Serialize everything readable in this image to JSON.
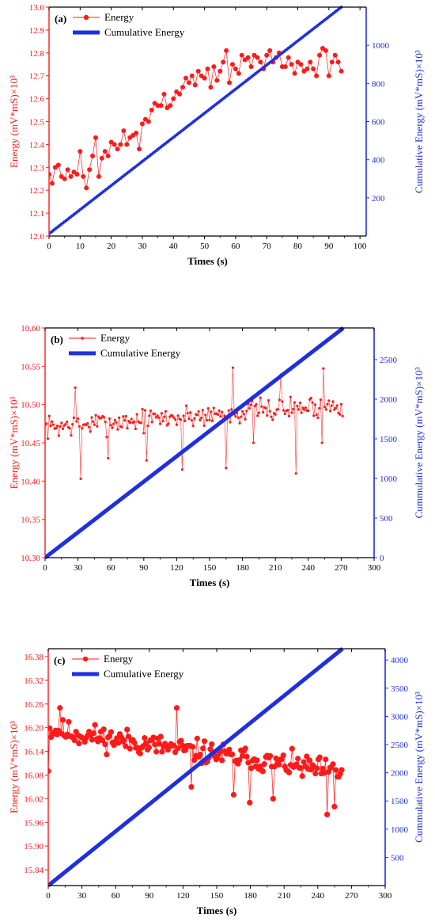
{
  "colors": {
    "energy": "#ff1a1a",
    "cumulative": "#1f2fe0",
    "axis": "#000000"
  },
  "chart_data": [
    {
      "type": "line",
      "panel_label": "(a)",
      "xlabel": "Times (s)",
      "ylabel": "Energy (mV*mS)×10³",
      "y2label": "Cumulative Energy (mV*mS)×10³",
      "xlim": [
        0,
        102
      ],
      "ylim": [
        12.0,
        13.0
      ],
      "y2lim": [
        0,
        1200
      ],
      "xticks": [
        0,
        10,
        20,
        30,
        40,
        50,
        60,
        70,
        80,
        90,
        100
      ],
      "yticks": [
        12.0,
        12.1,
        12.2,
        12.3,
        12.4,
        12.5,
        12.6,
        12.7,
        12.8,
        12.9,
        13.0
      ],
      "y2ticks": [
        200,
        400,
        600,
        800,
        1000
      ],
      "ytick_decimals": 1,
      "legend_position": "top-left",
      "series": [
        {
          "name": "Energy",
          "axis": "left",
          "style": "line-marker",
          "x": [
            0,
            1,
            2,
            3,
            4,
            5,
            6,
            7,
            8,
            9,
            10,
            11,
            12,
            13,
            14,
            15,
            16,
            17,
            18,
            19,
            20,
            21,
            22,
            23,
            24,
            25,
            26,
            27,
            28,
            29,
            30,
            31,
            32,
            33,
            34,
            35,
            36,
            37,
            38,
            39,
            40,
            41,
            42,
            43,
            44,
            45,
            46,
            47,
            48,
            49,
            50,
            51,
            52,
            53,
            54,
            55,
            56,
            57,
            58,
            59,
            60,
            61,
            62,
            63,
            64,
            65,
            66,
            67,
            68,
            69,
            70,
            71,
            72,
            73,
            74,
            75,
            76,
            77,
            78,
            79,
            80,
            81,
            82,
            83,
            84,
            85,
            86,
            87,
            88,
            89,
            90,
            91,
            92,
            93,
            94
          ],
          "values": [
            12.27,
            12.23,
            12.3,
            12.31,
            12.26,
            12.25,
            12.29,
            12.26,
            12.28,
            12.27,
            12.37,
            12.26,
            12.21,
            12.29,
            12.35,
            12.43,
            12.26,
            12.34,
            12.37,
            12.35,
            12.41,
            12.4,
            12.38,
            12.4,
            12.46,
            12.4,
            12.43,
            12.44,
            12.45,
            12.38,
            12.49,
            12.51,
            12.5,
            12.55,
            12.58,
            12.57,
            12.57,
            12.62,
            12.56,
            12.57,
            12.6,
            12.63,
            12.62,
            12.65,
            12.69,
            12.67,
            12.7,
            12.66,
            12.72,
            12.7,
            12.69,
            12.73,
            12.65,
            12.74,
            12.68,
            12.72,
            12.76,
            12.81,
            12.67,
            12.75,
            12.73,
            12.71,
            12.79,
            12.77,
            12.78,
            12.74,
            12.79,
            12.78,
            12.76,
            12.73,
            12.79,
            12.81,
            12.76,
            12.78,
            12.8,
            12.74,
            12.74,
            12.78,
            12.75,
            12.71,
            12.76,
            12.75,
            12.72,
            12.73,
            12.76,
            12.73,
            12.7,
            12.79,
            12.82,
            12.81,
            12.7,
            12.76,
            12.79,
            12.76,
            12.72
          ]
        },
        {
          "name": "Cumulative Energy",
          "axis": "right",
          "style": "dots",
          "x_start": 0,
          "x_end": 94,
          "x_step": 1,
          "y_start": 12,
          "y_end": 1200
        }
      ]
    },
    {
      "type": "line",
      "panel_label": "(b)",
      "xlabel": "Times (s)",
      "ylabel": "Energy (mV*mS)×10³",
      "y2label": "Cummulative Energy (mV*mS)×10³",
      "xlim": [
        0,
        300
      ],
      "ylim": [
        10.3,
        10.6
      ],
      "y2lim": [
        0,
        2900
      ],
      "xticks": [
        0,
        30,
        60,
        90,
        120,
        150,
        180,
        210,
        240,
        270,
        300
      ],
      "yticks": [
        10.3,
        10.35,
        10.4,
        10.45,
        10.5,
        10.55,
        10.6
      ],
      "y2ticks": [
        0,
        500,
        1000,
        1500,
        2000,
        2500
      ],
      "ytick_decimals": 2,
      "legend_position": "top-left",
      "series": [
        {
          "name": "Energy",
          "axis": "left",
          "style": "line-smallmarker",
          "x_start": 0,
          "x_step": 1.25,
          "x_end": 272,
          "baseline_start": 10.47,
          "baseline_end": 10.5,
          "spread": 0.022,
          "seed": 7,
          "outliers": [
            {
              "x": 33,
              "value": 10.403
            },
            {
              "x": 58,
              "value": 10.43
            },
            {
              "x": 92,
              "value": 10.427
            },
            {
              "x": 125,
              "value": 10.415
            },
            {
              "x": 165,
              "value": 10.417
            },
            {
              "x": 171,
              "value": 10.548
            },
            {
              "x": 190,
              "value": 10.45
            },
            {
              "x": 229,
              "value": 10.41
            },
            {
              "x": 252,
              "value": 10.45
            },
            {
              "x": 254,
              "value": 10.547
            },
            {
              "x": 27,
              "value": 10.522
            },
            {
              "x": 215,
              "value": 10.539
            }
          ]
        },
        {
          "name": "Cumulative Energy",
          "axis": "right",
          "style": "thick-line",
          "x_start": 0,
          "x_end": 272,
          "y_start": 0,
          "y_end": 2900
        }
      ]
    },
    {
      "type": "line",
      "panel_label": "(c)",
      "xlabel": "Times (s)",
      "ylabel": "Energy (mV*mS)×10³",
      "y2label": "Cummulative Energy (mV*mS)×10³",
      "xlim": [
        0,
        300
      ],
      "ylim": [
        15.8,
        16.4
      ],
      "y2lim": [
        0,
        4200
      ],
      "xticks": [
        0,
        30,
        60,
        90,
        120,
        150,
        180,
        210,
        240,
        270,
        300
      ],
      "yticks": [
        15.84,
        15.9,
        15.96,
        16.02,
        16.08,
        16.14,
        16.2,
        16.26,
        16.32,
        16.38
      ],
      "y2ticks": [
        500,
        1000,
        1500,
        2000,
        2500,
        3000,
        3500,
        4000
      ],
      "ytick_decimals": 2,
      "legend_position": "top-left",
      "series": [
        {
          "name": "Energy",
          "axis": "left",
          "style": "line-marker",
          "x_start": 0,
          "x_step": 1.3,
          "x_end": 262,
          "baseline_start": 16.195,
          "baseline_end": 16.085,
          "spread": 0.045,
          "seed": 11,
          "outliers": [
            {
              "x": 0,
              "value": 16.09
            },
            {
              "x": 128,
              "value": 16.05
            },
            {
              "x": 165,
              "value": 16.03
            },
            {
              "x": 179,
              "value": 16.01
            },
            {
              "x": 200,
              "value": 16.02
            },
            {
              "x": 248,
              "value": 15.98
            },
            {
              "x": 255,
              "value": 16.0
            },
            {
              "x": 115,
              "value": 16.25
            },
            {
              "x": 10,
              "value": 16.25
            }
          ]
        },
        {
          "name": "Cumulative Energy",
          "axis": "right",
          "style": "thick-line",
          "x_start": 0,
          "x_end": 262,
          "y_start": 0,
          "y_end": 4200
        }
      ]
    }
  ]
}
